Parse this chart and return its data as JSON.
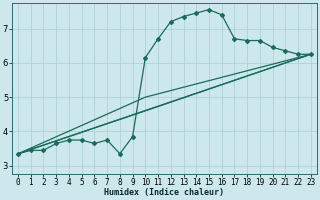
{
  "xlabel": "Humidex (Indice chaleur)",
  "background_color": "#cce8ec",
  "grid_color": "#aaccd4",
  "line_color": "#1a6b5a",
  "xlim": [
    -0.5,
    23.5
  ],
  "ylim": [
    2.75,
    7.75
  ],
  "xticks": [
    0,
    1,
    2,
    3,
    4,
    5,
    6,
    7,
    8,
    9,
    10,
    11,
    12,
    13,
    14,
    15,
    16,
    17,
    18,
    19,
    20,
    21,
    22,
    23
  ],
  "yticks": [
    3,
    4,
    5,
    6,
    7
  ],
  "series1_x": [
    0,
    1,
    2,
    3,
    4,
    5,
    6,
    7,
    8,
    9,
    10,
    11,
    12,
    13,
    14,
    15,
    16,
    17,
    18,
    19,
    20,
    21,
    22,
    23
  ],
  "series1_y": [
    3.35,
    3.45,
    3.45,
    3.65,
    3.75,
    3.75,
    3.65,
    3.75,
    3.35,
    3.85,
    6.15,
    6.7,
    7.2,
    7.35,
    7.45,
    7.55,
    7.4,
    6.7,
    6.65,
    6.65,
    6.45,
    6.35,
    6.25,
    6.25
  ],
  "series2_x": [
    0,
    23
  ],
  "series2_y": [
    3.35,
    6.25
  ],
  "series3_x": [
    0,
    10,
    23
  ],
  "series3_y": [
    3.35,
    4.6,
    6.25
  ],
  "series4_x": [
    0,
    10,
    23
  ],
  "series4_y": [
    3.35,
    5.0,
    6.25
  ],
  "xlabel_fontsize": 6,
  "tick_fontsize": 5.5
}
